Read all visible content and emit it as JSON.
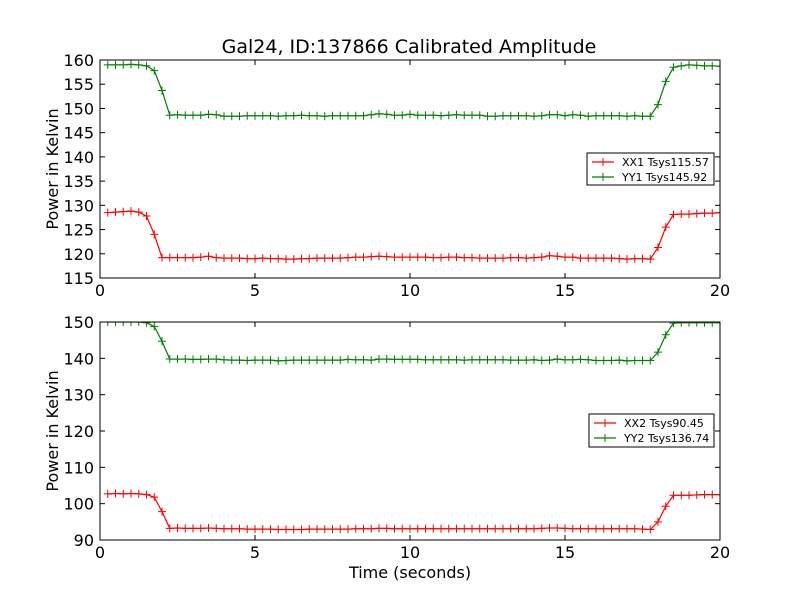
{
  "chart_data": [
    {
      "type": "line",
      "title": "Gal24, ID:137866 Calibrated Amplitude",
      "xlabel": "",
      "ylabel": "Power in Kelvin",
      "xlim": [
        0,
        20
      ],
      "ylim": [
        115,
        160
      ],
      "xticks": [
        0,
        5,
        10,
        15,
        20
      ],
      "yticks": [
        115,
        120,
        125,
        130,
        135,
        140,
        145,
        150,
        155,
        160
      ],
      "grid": false,
      "legend_position": "center-right",
      "x": [
        0.25,
        0.5,
        0.75,
        1.0,
        1.25,
        1.5,
        1.75,
        2.0,
        2.25,
        2.5,
        2.75,
        3.0,
        3.25,
        3.5,
        3.75,
        4.0,
        4.25,
        4.5,
        4.75,
        5.0,
        5.25,
        5.5,
        5.75,
        6.0,
        6.25,
        6.5,
        6.75,
        7.0,
        7.25,
        7.5,
        7.75,
        8.0,
        8.25,
        8.5,
        8.75,
        9.0,
        9.25,
        9.5,
        9.75,
        10.0,
        10.25,
        10.5,
        10.75,
        11.0,
        11.25,
        11.5,
        11.75,
        12.0,
        12.25,
        12.5,
        12.75,
        13.0,
        13.25,
        13.5,
        13.75,
        14.0,
        14.25,
        14.5,
        14.75,
        15.0,
        15.25,
        15.5,
        15.75,
        16.0,
        16.25,
        16.5,
        16.75,
        17.0,
        17.25,
        17.5,
        17.75,
        18.0,
        18.25,
        18.5,
        18.75,
        19.0,
        19.25,
        19.5,
        19.75,
        20.0
      ],
      "series": [
        {
          "name": "XX1 Tsys115.57",
          "color": "#ff0000",
          "values": [
            128.5,
            128.6,
            128.7,
            128.8,
            128.6,
            127.8,
            124.0,
            119.2,
            119.2,
            119.2,
            119.2,
            119.2,
            119.3,
            119.5,
            119.2,
            119.1,
            119.1,
            119.1,
            119.0,
            119.0,
            119.1,
            119.0,
            119.0,
            118.9,
            118.9,
            119.0,
            119.0,
            119.1,
            119.1,
            119.1,
            119.1,
            119.2,
            119.3,
            119.3,
            119.4,
            119.5,
            119.4,
            119.3,
            119.3,
            119.3,
            119.3,
            119.3,
            119.2,
            119.2,
            119.3,
            119.3,
            119.2,
            119.2,
            119.1,
            119.1,
            119.1,
            119.1,
            119.2,
            119.2,
            119.1,
            119.2,
            119.3,
            119.6,
            119.5,
            119.3,
            119.3,
            119.1,
            119.1,
            119.1,
            119.1,
            119.1,
            119.0,
            118.9,
            119.0,
            119.0,
            118.9,
            121.3,
            125.5,
            128.1,
            128.2,
            128.2,
            128.3,
            128.4,
            128.4,
            128.5
          ]
        },
        {
          "name": "YY1 Tsys145.92",
          "color": "#008000",
          "values": [
            159.0,
            159.0,
            159.0,
            159.1,
            159.0,
            158.8,
            157.8,
            153.7,
            148.6,
            148.7,
            148.6,
            148.6,
            148.6,
            148.8,
            148.7,
            148.4,
            148.4,
            148.4,
            148.5,
            148.5,
            148.5,
            148.5,
            148.4,
            148.5,
            148.5,
            148.6,
            148.5,
            148.5,
            148.4,
            148.5,
            148.5,
            148.5,
            148.5,
            148.5,
            148.7,
            148.9,
            148.8,
            148.6,
            148.6,
            148.8,
            148.6,
            148.6,
            148.6,
            148.5,
            148.6,
            148.7,
            148.6,
            148.6,
            148.6,
            148.4,
            148.4,
            148.5,
            148.5,
            148.5,
            148.5,
            148.4,
            148.5,
            148.7,
            148.7,
            148.5,
            148.7,
            148.6,
            148.4,
            148.5,
            148.5,
            148.5,
            148.5,
            148.4,
            148.5,
            148.4,
            148.4,
            150.8,
            155.6,
            158.5,
            158.8,
            159.0,
            158.9,
            158.8,
            158.8,
            158.7
          ]
        }
      ]
    },
    {
      "type": "line",
      "title": "",
      "xlabel": "Time (seconds)",
      "ylabel": "Power in Kelvin",
      "xlim": [
        0,
        20
      ],
      "ylim": [
        90,
        150
      ],
      "xticks": [
        0,
        5,
        10,
        15,
        20
      ],
      "yticks": [
        90,
        100,
        110,
        120,
        130,
        140,
        150
      ],
      "grid": false,
      "legend_position": "center-right",
      "x": [
        0.25,
        0.5,
        0.75,
        1.0,
        1.25,
        1.5,
        1.75,
        2.0,
        2.25,
        2.5,
        2.75,
        3.0,
        3.25,
        3.5,
        3.75,
        4.0,
        4.25,
        4.5,
        4.75,
        5.0,
        5.25,
        5.5,
        5.75,
        6.0,
        6.25,
        6.5,
        6.75,
        7.0,
        7.25,
        7.5,
        7.75,
        8.0,
        8.25,
        8.5,
        8.75,
        9.0,
        9.25,
        9.5,
        9.75,
        10.0,
        10.25,
        10.5,
        10.75,
        11.0,
        11.25,
        11.5,
        11.75,
        12.0,
        12.25,
        12.5,
        12.75,
        13.0,
        13.25,
        13.5,
        13.75,
        14.0,
        14.25,
        14.5,
        14.75,
        15.0,
        15.25,
        15.5,
        15.75,
        16.0,
        16.25,
        16.5,
        16.75,
        17.0,
        17.25,
        17.5,
        17.75,
        18.0,
        18.25,
        18.5,
        18.75,
        19.0,
        19.25,
        19.5,
        19.75,
        20.0
      ],
      "series": [
        {
          "name": "XX2 Tsys90.45",
          "color": "#ff0000",
          "values": [
            102.7,
            102.8,
            102.7,
            102.8,
            102.7,
            102.5,
            101.8,
            97.8,
            93.2,
            93.3,
            93.2,
            93.2,
            93.2,
            93.3,
            93.2,
            93.1,
            93.1,
            93.1,
            93.0,
            93.0,
            93.0,
            93.0,
            92.9,
            92.9,
            92.9,
            92.9,
            93.0,
            93.0,
            93.0,
            93.0,
            93.0,
            93.0,
            93.1,
            93.1,
            93.1,
            93.2,
            93.2,
            93.1,
            93.1,
            93.1,
            93.1,
            93.1,
            93.1,
            93.1,
            93.1,
            93.1,
            93.1,
            93.1,
            93.1,
            93.1,
            93.1,
            93.1,
            93.1,
            93.1,
            93.1,
            93.1,
            93.2,
            93.3,
            93.3,
            93.2,
            93.1,
            93.1,
            93.1,
            93.1,
            93.1,
            93.1,
            93.1,
            93.1,
            93.1,
            93.0,
            92.9,
            95.0,
            99.3,
            102.3,
            102.3,
            102.3,
            102.4,
            102.5,
            102.5,
            102.5
          ]
        },
        {
          "name": "YY2 Tsys136.74",
          "color": "#008000",
          "values": [
            150.0,
            150.0,
            150.0,
            150.0,
            150.0,
            149.8,
            148.8,
            144.7,
            139.8,
            139.8,
            139.8,
            139.7,
            139.7,
            139.8,
            139.8,
            139.6,
            139.5,
            139.5,
            139.4,
            139.5,
            139.5,
            139.5,
            139.3,
            139.4,
            139.5,
            139.5,
            139.5,
            139.5,
            139.5,
            139.5,
            139.5,
            139.7,
            139.6,
            139.6,
            139.5,
            139.8,
            139.8,
            139.7,
            139.7,
            139.7,
            139.7,
            139.6,
            139.6,
            139.6,
            139.6,
            139.6,
            139.5,
            139.6,
            139.6,
            139.6,
            139.6,
            139.6,
            139.5,
            139.5,
            139.5,
            139.6,
            139.4,
            139.5,
            139.8,
            139.6,
            139.6,
            139.7,
            139.6,
            139.4,
            139.4,
            139.4,
            139.5,
            139.3,
            139.4,
            139.4,
            139.4,
            141.7,
            146.5,
            149.7,
            149.8,
            149.8,
            149.8,
            149.8,
            149.8,
            149.8
          ]
        }
      ]
    }
  ]
}
